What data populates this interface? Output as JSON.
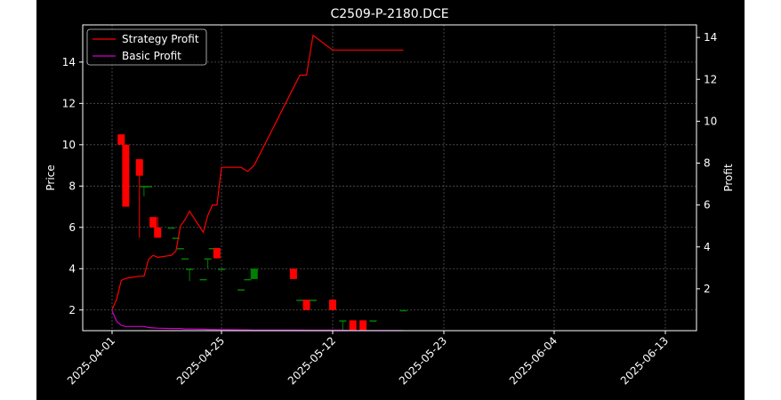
{
  "chart_data": {
    "type": "candlestick",
    "title": "C2509-P-2180.DCE",
    "xlabel": "",
    "ylabel_left": "Price",
    "ylabel_right": "Profit",
    "x_tick_labels": [
      "2025-04-01",
      "2025-04-25",
      "2025-05-12",
      "2025-05-23",
      "2025-06-04",
      "2025-06-13"
    ],
    "y_left_ticks": [
      2,
      4,
      6,
      8,
      10,
      12,
      14
    ],
    "y_right_ticks": [
      2,
      4,
      6,
      8,
      10,
      12,
      14
    ],
    "ylim_left": [
      1.0,
      15.8
    ],
    "ylim_right": [
      0.0,
      14.6
    ],
    "grid": true,
    "legend_position": "top-left",
    "legend": [
      {
        "label": "Strategy Profit",
        "color": "#ff0000"
      },
      {
        "label": "Basic Profit",
        "color": "#cc00cc"
      }
    ],
    "candles": [
      {
        "x": "2025-04-03",
        "open": 10.5,
        "close": 10.0,
        "high": 10.5,
        "low": 10.0
      },
      {
        "x": "2025-04-04",
        "open": 10.0,
        "close": 7.0,
        "high": 10.0,
        "low": 7.0
      },
      {
        "x": "2025-04-07",
        "open": 9.3,
        "close": 8.5,
        "high": 9.3,
        "low": 5.5
      },
      {
        "x": "2025-04-08",
        "open": 8.0,
        "close": 8.0,
        "high": 8.0,
        "low": 7.5
      },
      {
        "x": "2025-04-09",
        "open": 8.0,
        "close": 8.0,
        "high": 8.0,
        "low": 8.0
      },
      {
        "x": "2025-04-10",
        "open": 6.5,
        "close": 6.0,
        "high": 6.5,
        "low": 6.0
      },
      {
        "x": "2025-04-11",
        "open": 6.0,
        "close": 5.5,
        "high": 6.5,
        "low": 5.5
      },
      {
        "x": "2025-04-14",
        "open": 6.0,
        "close": 6.0,
        "high": 6.0,
        "low": 6.0
      },
      {
        "x": "2025-04-15",
        "open": 5.5,
        "close": 5.5,
        "high": 5.5,
        "low": 5.5
      },
      {
        "x": "2025-04-16",
        "open": 5.0,
        "close": 5.0,
        "high": 5.0,
        "low": 5.0
      },
      {
        "x": "2025-04-17",
        "open": 4.5,
        "close": 4.5,
        "high": 4.5,
        "low": 4.5
      },
      {
        "x": "2025-04-18",
        "open": 4.0,
        "close": 4.0,
        "high": 4.0,
        "low": 3.4
      },
      {
        "x": "2025-04-21",
        "open": 3.5,
        "close": 3.5,
        "high": 3.5,
        "low": 3.5
      },
      {
        "x": "2025-04-22",
        "open": 4.5,
        "close": 4.5,
        "high": 4.5,
        "low": 4.0
      },
      {
        "x": "2025-04-23",
        "open": 5.0,
        "close": 5.0,
        "high": 5.0,
        "low": 5.0
      },
      {
        "x": "2025-04-24",
        "open": 5.0,
        "close": 4.5,
        "high": 5.0,
        "low": 4.5
      },
      {
        "x": "2025-04-25",
        "open": 4.0,
        "close": 4.0,
        "high": 4.0,
        "low": 4.0
      },
      {
        "x": "2025-04-28",
        "open": 3.0,
        "close": 3.0,
        "high": 3.0,
        "low": 3.0
      },
      {
        "x": "2025-04-29",
        "open": 3.5,
        "close": 3.5,
        "high": 3.5,
        "low": 3.5
      },
      {
        "x": "2025-04-30",
        "open": 3.5,
        "close": 4.0,
        "high": 4.0,
        "low": 3.5
      },
      {
        "x": "2025-05-06",
        "open": 4.0,
        "close": 3.5,
        "high": 4.0,
        "low": 3.5
      },
      {
        "x": "2025-05-07",
        "open": 2.5,
        "close": 2.5,
        "high": 2.5,
        "low": 2.5
      },
      {
        "x": "2025-05-08",
        "open": 2.5,
        "close": 2.0,
        "high": 2.5,
        "low": 2.0
      },
      {
        "x": "2025-05-09",
        "open": 2.5,
        "close": 2.5,
        "high": 2.5,
        "low": 2.5
      },
      {
        "x": "2025-05-12",
        "open": 2.5,
        "close": 2.0,
        "high": 2.5,
        "low": 2.0
      },
      {
        "x": "2025-05-13",
        "open": 1.5,
        "close": 1.5,
        "high": 1.5,
        "low": 1.0
      },
      {
        "x": "2025-05-14",
        "open": 1.5,
        "close": 1.0,
        "high": 1.5,
        "low": 1.0
      },
      {
        "x": "2025-05-15",
        "open": 1.5,
        "close": 1.0,
        "high": 1.5,
        "low": 1.0
      },
      {
        "x": "2025-05-16",
        "open": 1.5,
        "close": 1.5,
        "high": 1.5,
        "low": 1.5
      },
      {
        "x": "2025-05-19",
        "open": 2.0,
        "close": 2.0,
        "high": 2.0,
        "low": 2.0
      }
    ],
    "series": [
      {
        "name": "Strategy Profit",
        "axis": "right",
        "color": "#ff0000",
        "x": [
          "2025-04-01",
          "2025-04-02",
          "2025-04-03",
          "2025-04-04",
          "2025-04-07",
          "2025-04-08",
          "2025-04-09",
          "2025-04-10",
          "2025-04-11",
          "2025-04-14",
          "2025-04-15",
          "2025-04-16",
          "2025-04-17",
          "2025-04-18",
          "2025-04-21",
          "2025-04-22",
          "2025-04-23",
          "2025-04-24",
          "2025-04-25",
          "2025-04-28",
          "2025-04-29",
          "2025-04-30",
          "2025-05-06",
          "2025-05-07",
          "2025-05-08",
          "2025-05-09",
          "2025-05-12",
          "2025-05-13",
          "2025-05-14",
          "2025-05-15",
          "2025-05-16",
          "2025-05-19"
        ],
        "values": [
          1.0,
          1.5,
          2.4,
          2.5,
          2.6,
          2.6,
          3.4,
          3.6,
          3.5,
          3.6,
          3.8,
          5.0,
          5.3,
          5.7,
          4.7,
          5.5,
          6.0,
          6.0,
          7.8,
          7.8,
          7.6,
          7.9,
          11.6,
          12.2,
          12.2,
          14.1,
          13.4,
          13.4,
          13.4,
          13.4,
          13.4,
          13.4
        ]
      },
      {
        "name": "Basic Profit",
        "axis": "right",
        "color": "#cc00cc",
        "x": [
          "2025-04-01",
          "2025-04-02",
          "2025-04-03",
          "2025-04-04",
          "2025-04-07",
          "2025-04-08",
          "2025-04-09",
          "2025-04-10",
          "2025-04-11",
          "2025-04-14",
          "2025-04-15",
          "2025-04-16",
          "2025-04-17",
          "2025-04-18",
          "2025-04-21",
          "2025-04-22",
          "2025-04-23",
          "2025-04-24",
          "2025-04-25",
          "2025-04-28",
          "2025-04-29",
          "2025-04-30",
          "2025-05-06",
          "2025-05-07",
          "2025-05-08",
          "2025-05-09",
          "2025-05-12",
          "2025-05-13",
          "2025-05-14",
          "2025-05-15",
          "2025-05-16",
          "2025-05-19"
        ],
        "values": [
          0.95,
          0.45,
          0.25,
          0.2,
          0.2,
          0.2,
          0.15,
          0.13,
          0.12,
          0.1,
          0.1,
          0.1,
          0.08,
          0.08,
          0.07,
          0.06,
          0.06,
          0.05,
          0.05,
          0.04,
          0.04,
          0.03,
          0.03,
          0.03,
          0.02,
          0.02,
          0.02,
          0.02,
          0.01,
          0.01,
          0.01,
          0.01
        ]
      }
    ]
  }
}
